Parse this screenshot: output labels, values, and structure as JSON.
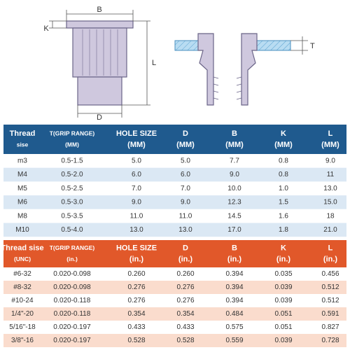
{
  "diagram": {
    "labels": {
      "b": "B",
      "k": "K",
      "l": "L",
      "d": "D",
      "t": "T"
    }
  },
  "metric_table": {
    "header": [
      [
        "Thread",
        "sise"
      ],
      [
        "T(GRIP RANGE)",
        "(MM)"
      ],
      [
        "HOLE SIZE",
        "(MM)"
      ],
      [
        "D",
        "(MM)"
      ],
      [
        "B",
        "(MM)"
      ],
      [
        "K",
        "(MM)"
      ],
      [
        "L",
        "(MM)"
      ]
    ],
    "rows": [
      [
        "m3",
        "0.5-1.5",
        "5.0",
        "5.0",
        "7.7",
        "0.8",
        "9.0"
      ],
      [
        "M4",
        "0.5-2.0",
        "6.0",
        "6.0",
        "9.0",
        "0.8",
        "11"
      ],
      [
        "M5",
        "0.5-2.5",
        "7.0",
        "7.0",
        "10.0",
        "1.0",
        "13.0"
      ],
      [
        "M6",
        "0.5-3.0",
        "9.0",
        "9.0",
        "12.3",
        "1.5",
        "15.0"
      ],
      [
        "M8",
        "0.5-3.5",
        "11.0",
        "11.0",
        "14.5",
        "1.6",
        "18"
      ],
      [
        "M10",
        "0.5-4.0",
        "13.0",
        "13.0",
        "17.0",
        "1.8",
        "21.0"
      ]
    ]
  },
  "imperial_table": {
    "header": [
      [
        "Thread sise",
        "(UNC)"
      ],
      [
        "T(GRIP RANGE)",
        "(in.)"
      ],
      [
        "HOLE SIZE",
        "(in.)"
      ],
      [
        "D",
        "(in.)"
      ],
      [
        "B",
        "(in.)"
      ],
      [
        "K",
        "(in.)"
      ],
      [
        "L",
        "(in.)"
      ]
    ],
    "rows": [
      [
        "#6-32",
        "0.020-0.098",
        "0.260",
        "0.260",
        "0.394",
        "0.035",
        "0.456"
      ],
      [
        "#8-32",
        "0.020-0.098",
        "0.276",
        "0.276",
        "0.394",
        "0.039",
        "0.512"
      ],
      [
        "#10-24",
        "0.020-0.118",
        "0.276",
        "0.276",
        "0.394",
        "0.039",
        "0.512"
      ],
      [
        "1/4\"-20",
        "0.020-0.118",
        "0.354",
        "0.354",
        "0.484",
        "0.051",
        "0.591"
      ],
      [
        "5/16\"-18",
        "0.020-0.197",
        "0.433",
        "0.433",
        "0.575",
        "0.051",
        "0.827"
      ],
      [
        "3/8\"-16",
        "0.020-0.197",
        "0.528",
        "0.528",
        "0.559",
        "0.039",
        "0.728"
      ]
    ]
  }
}
